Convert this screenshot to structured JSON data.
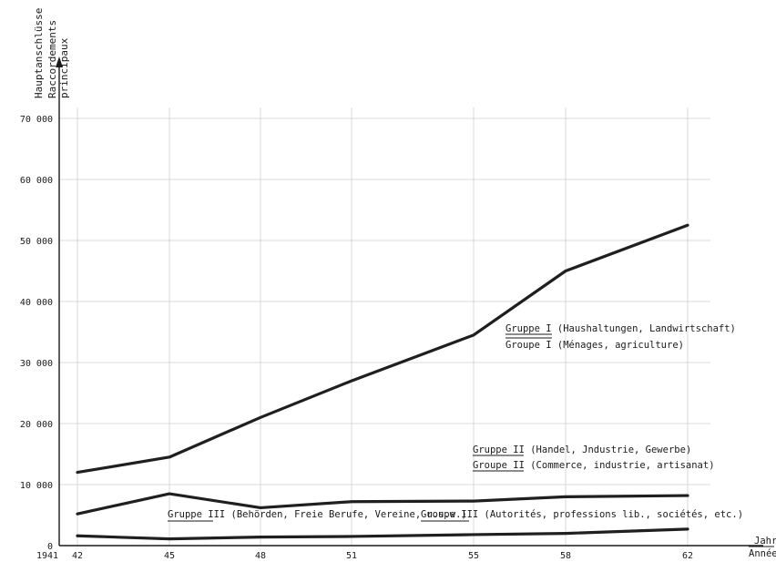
{
  "chart_data": {
    "type": "line",
    "y_axis_title": [
      "Hauptanschlüsse",
      "Raccordements",
      "principaux"
    ],
    "x_axis_title": [
      "Jahr",
      "Année"
    ],
    "x_ticks": [
      "1941",
      "42",
      "45",
      "48",
      "51",
      "55",
      "58",
      "62"
    ],
    "y_ticks": [
      "0",
      "10 000",
      "20 000",
      "30 000",
      "40 000",
      "50 000",
      "60 000",
      "70 000"
    ],
    "x": [
      1942,
      1945,
      1948,
      1951,
      1955,
      1958,
      1962
    ],
    "ylim": [
      0,
      70000
    ],
    "grid": true,
    "series": [
      {
        "values": [
          12000,
          14500,
          21000,
          27000,
          34500,
          45000,
          52500
        ],
        "label_de_prefix": "Gruppe I",
        "label_de_rest": " (Haushaltungen, Landwirtschaft)",
        "label_fr_prefix": "Groupe I",
        "label_fr_rest": " (Ménages, agriculture)"
      },
      {
        "values": [
          5200,
          8500,
          6200,
          7200,
          7300,
          8000,
          8200
        ],
        "label_de_prefix": "Gruppe II",
        "label_de_rest": " (Handel, Jndustrie, Gewerbe)",
        "label_fr_prefix": "Groupe II",
        "label_fr_rest": " (Commerce, industrie, artisanat)"
      },
      {
        "values": [
          1600,
          1100,
          1400,
          1500,
          1800,
          2000,
          2700
        ],
        "label_de_prefix": "Gruppe III",
        "label_de_rest": " (Behörden, Freie Berufe, Vereine, u.s.w.)",
        "label_fr_prefix": "Groupe III",
        "label_fr_rest": " (Autorités, professions lib., sociétés, etc.)"
      }
    ]
  }
}
